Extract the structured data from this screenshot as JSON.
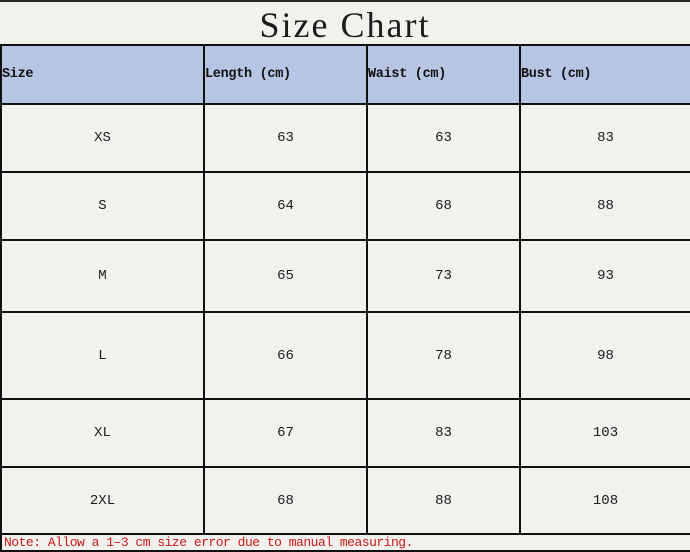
{
  "title": "Size Chart",
  "chart_data": {
    "type": "table",
    "title": "Size Chart",
    "columns": [
      "Size",
      "Length (cm)",
      "Waist (cm)",
      "Bust (cm)"
    ],
    "rows": [
      [
        "XS",
        63,
        63,
        83
      ],
      [
        "S",
        64,
        68,
        88
      ],
      [
        "M",
        65,
        73,
        93
      ],
      [
        "L",
        66,
        78,
        98
      ],
      [
        "XL",
        67,
        83,
        103
      ],
      [
        "2XL",
        68,
        88,
        108
      ]
    ],
    "note": "Note: Allow a 1–3 cm size error due to manual measuring.",
    "layout_hints": {
      "header_alignment": "left",
      "cell_alignment": "center",
      "note_position": "bottom-row-full-span"
    }
  },
  "colors": {
    "header_bg": "#b6c5e3",
    "page_bg": "#f2f1ed",
    "border": "#101010",
    "note_red": "#cd1717",
    "title_color": "#1c1c1c"
  }
}
